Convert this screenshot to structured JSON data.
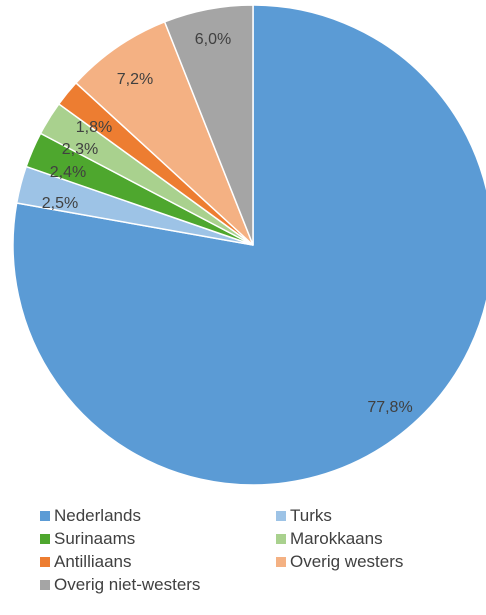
{
  "chart_data": {
    "type": "pie",
    "title": "",
    "slices": [
      {
        "label": "Nederlands",
        "value": 77.8,
        "text": "77,8%",
        "color": "#5b9bd5"
      },
      {
        "label": "Turks",
        "value": 2.5,
        "text": "2,5%",
        "color": "#9dc3e6"
      },
      {
        "label": "Surinaams",
        "value": 2.4,
        "text": "2,4%",
        "color": "#4ea72e"
      },
      {
        "label": "Marokkaans",
        "value": 2.3,
        "text": "2,3%",
        "color": "#a9d18e"
      },
      {
        "label": "Antilliaans",
        "value": 1.8,
        "text": "1,8%",
        "color": "#ed7d31"
      },
      {
        "label": "Overig westers",
        "value": 7.2,
        "text": "7,2%",
        "color": "#f4b183"
      },
      {
        "label": "Overig niet-westers",
        "value": 6.0,
        "text": "6,0%",
        "color": "#a5a5a5"
      }
    ],
    "legend_position": "bottom"
  }
}
